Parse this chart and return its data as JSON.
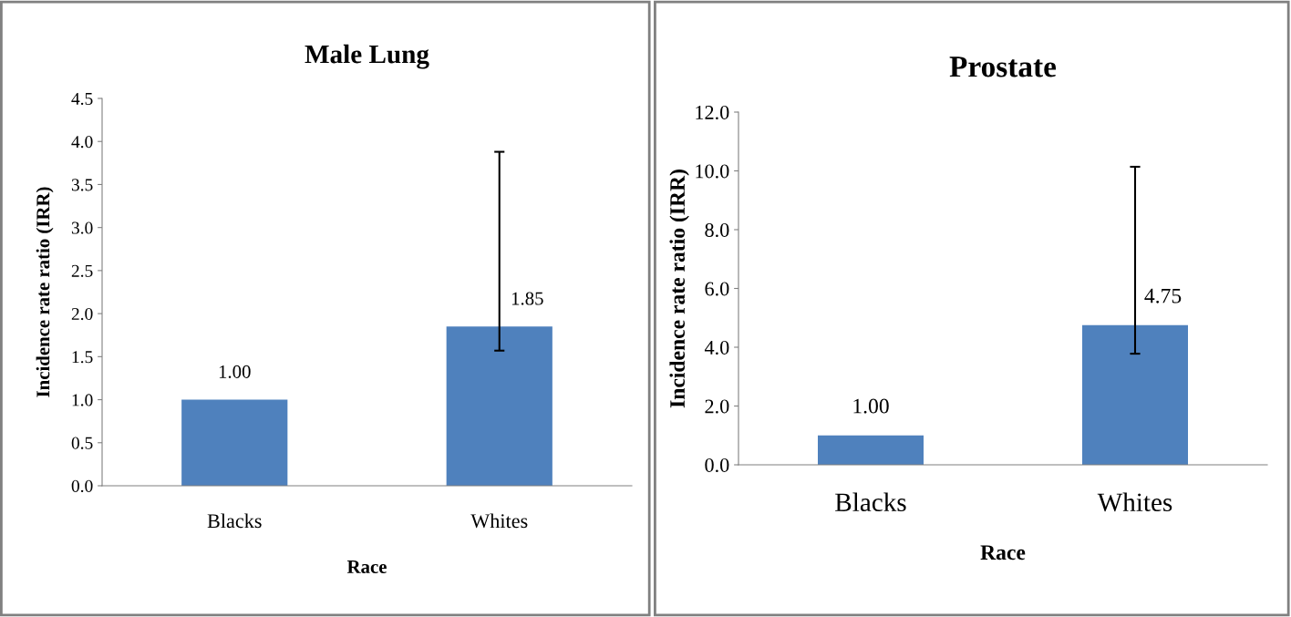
{
  "chart_data": [
    {
      "type": "bar",
      "title": "Male Lung",
      "xlabel": "Race",
      "ylabel": "Incidence rate ratio (IRR)",
      "categories": [
        "Blacks",
        "Whites"
      ],
      "values": [
        1.0,
        1.85
      ],
      "errors": [
        null,
        [
          1.57,
          3.88
        ]
      ],
      "value_labels": [
        "1.00",
        "1.85"
      ],
      "color": "#4f81bd",
      "ylim": [
        0,
        4.5
      ],
      "yticks": [
        {
          "value": 0,
          "label": "0.0"
        },
        {
          "value": 0.5,
          "label": "0.5"
        },
        {
          "value": 1,
          "label": "1.0"
        },
        {
          "value": 1.5,
          "label": "1.5"
        },
        {
          "value": 2,
          "label": "2.0"
        },
        {
          "value": 2.5,
          "label": "2.5"
        },
        {
          "value": 3,
          "label": "3.0"
        },
        {
          "value": 3.5,
          "label": "3.5"
        },
        {
          "value": 4,
          "label": "4.0"
        },
        {
          "value": 4.5,
          "label": "4.5"
        }
      ],
      "grid": false,
      "legend": false
    },
    {
      "type": "bar",
      "title": "Prostate",
      "xlabel": "Race",
      "ylabel": "Incidence rate ratio (IRR)",
      "categories": [
        "Blacks",
        "Whites"
      ],
      "values": [
        1.0,
        4.75
      ],
      "errors": [
        null,
        [
          3.78,
          10.14
        ]
      ],
      "value_labels": [
        "1.00",
        "4.75"
      ],
      "color": "#4f81bd",
      "ylim": [
        0,
        12
      ],
      "yticks": [
        {
          "value": 0,
          "label": "0.0"
        },
        {
          "value": 2,
          "label": "2.0"
        },
        {
          "value": 4,
          "label": "4.0"
        },
        {
          "value": 6,
          "label": "6.0"
        },
        {
          "value": 8,
          "label": "8.0"
        },
        {
          "value": 10,
          "label": "10.0"
        },
        {
          "value": 12,
          "label": "12.0"
        }
      ],
      "grid": false,
      "legend": false
    }
  ]
}
